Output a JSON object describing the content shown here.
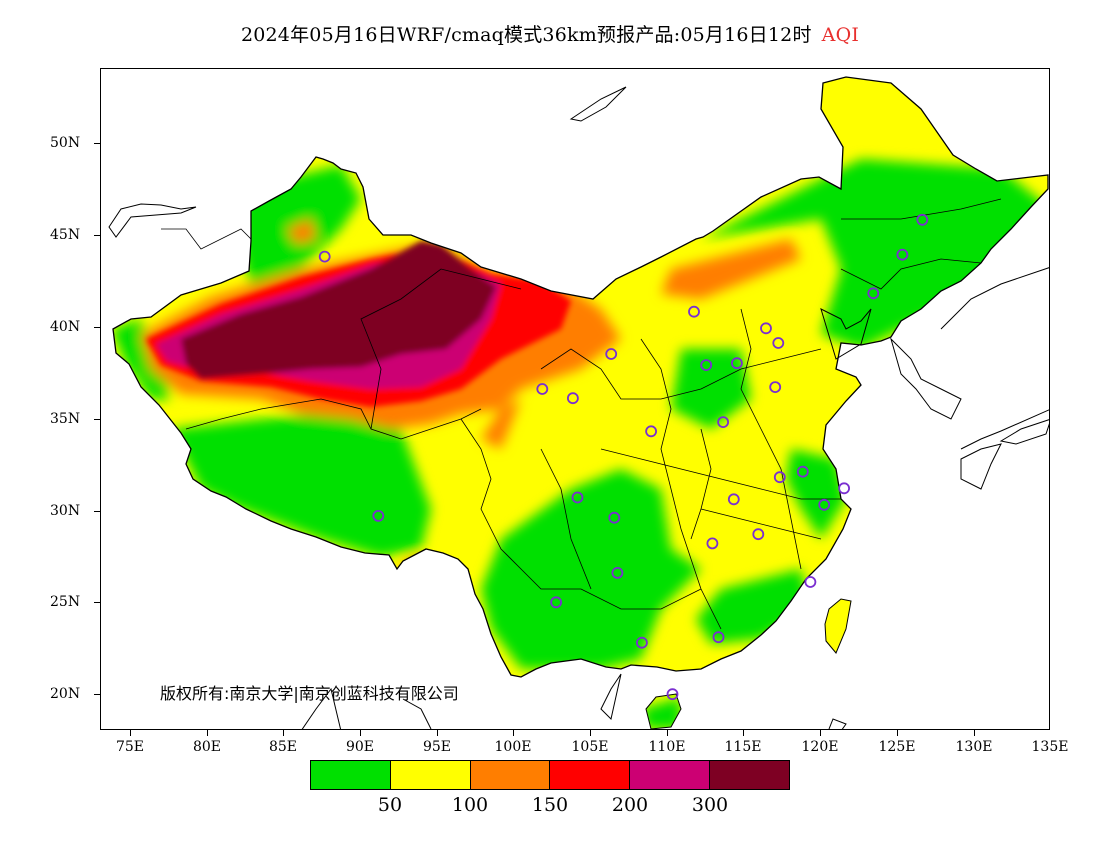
{
  "title": {
    "main": "2024年05月16日WRF/cmaq模式36km预报产品:05月16日12时",
    "pollutant": "AQI",
    "accent_color": "#e8302e"
  },
  "copyright": "版权所有:南京大学|南京创蓝科技有限公司",
  "axes": {
    "lat_labels": [
      "50N",
      "45N",
      "40N",
      "35N",
      "30N",
      "25N",
      "20N"
    ],
    "lon_labels": [
      "75E",
      "80E",
      "85E",
      "90E",
      "95E",
      "100E",
      "105E",
      "110E",
      "115E",
      "120E",
      "125E",
      "130E",
      "135E"
    ],
    "lat_range": [
      18,
      54
    ],
    "lon_range": [
      73,
      135
    ]
  },
  "legend": {
    "colors": [
      "#00e000",
      "#ffff00",
      "#ff7e00",
      "#ff0000",
      "#cc0073",
      "#7e0023"
    ],
    "values": [
      "50",
      "100",
      "150",
      "200",
      "300"
    ]
  },
  "stations": [
    [
      87.6,
      43.8
    ],
    [
      101.8,
      36.6
    ],
    [
      103.8,
      36.1
    ],
    [
      106.3,
      38.5
    ],
    [
      111.7,
      40.8
    ],
    [
      112.5,
      37.9
    ],
    [
      114.5,
      38.0
    ],
    [
      116.4,
      39.9
    ],
    [
      117.2,
      39.1
    ],
    [
      117.0,
      36.7
    ],
    [
      113.6,
      34.8
    ],
    [
      108.9,
      34.3
    ],
    [
      104.1,
      30.7
    ],
    [
      106.5,
      29.6
    ],
    [
      106.7,
      26.6
    ],
    [
      102.7,
      25.0
    ],
    [
      108.3,
      22.8
    ],
    [
      113.3,
      23.1
    ],
    [
      110.3,
      20.0
    ],
    [
      119.3,
      26.1
    ],
    [
      115.9,
      28.7
    ],
    [
      112.9,
      28.2
    ],
    [
      114.3,
      30.6
    ],
    [
      117.3,
      31.8
    ],
    [
      118.8,
      32.1
    ],
    [
      120.2,
      30.3
    ],
    [
      121.5,
      31.2
    ],
    [
      123.4,
      41.8
    ],
    [
      125.3,
      43.9
    ],
    [
      126.6,
      45.8
    ],
    [
      91.1,
      29.7
    ]
  ]
}
